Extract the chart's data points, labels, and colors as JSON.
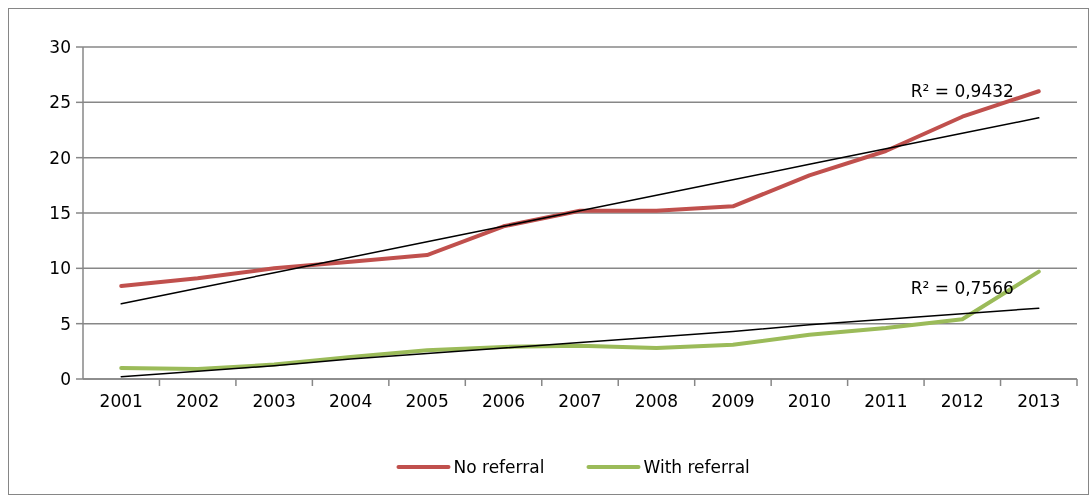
{
  "chart_data": {
    "type": "line",
    "categories": [
      "2001",
      "2002",
      "2003",
      "2004",
      "2005",
      "2006",
      "2007",
      "2008",
      "2009",
      "2010",
      "2011",
      "2012",
      "2013"
    ],
    "series": [
      {
        "name": "No referral",
        "color": "#c0504d",
        "values": [
          8.4,
          9.1,
          10.0,
          10.6,
          11.2,
          13.8,
          15.2,
          15.2,
          15.6,
          18.4,
          20.6,
          23.7,
          26.0
        ]
      },
      {
        "name": "With referral",
        "color": "#9bbb59",
        "values": [
          1.0,
          0.9,
          1.3,
          2.0,
          2.6,
          2.9,
          3.0,
          2.8,
          3.1,
          4.0,
          4.6,
          5.4,
          9.7
        ]
      },
      {
        "type": "line",
        "color": "#000000",
        "values": [
          6.8,
          8.2,
          9.6,
          11.0,
          12.4,
          13.8,
          15.2,
          16.6,
          18.0,
          19.4,
          20.8,
          22.2,
          23.6
        ]
      },
      {
        "type": "line",
        "color": "#000000",
        "values": [
          0.2,
          0.7,
          1.2,
          1.8,
          2.3,
          2.8,
          3.3,
          3.8,
          4.3,
          4.9,
          5.4,
          5.9,
          6.4
        ]
      }
    ],
    "ylim": [
      0,
      30
    ],
    "yticks": [
      0,
      5,
      10,
      15,
      20,
      25,
      30
    ],
    "grid": "y",
    "legend": "bottom",
    "marker": "none",
    "annotations": [
      "R² = 0,9432",
      "R² = 0,7566"
    ]
  }
}
